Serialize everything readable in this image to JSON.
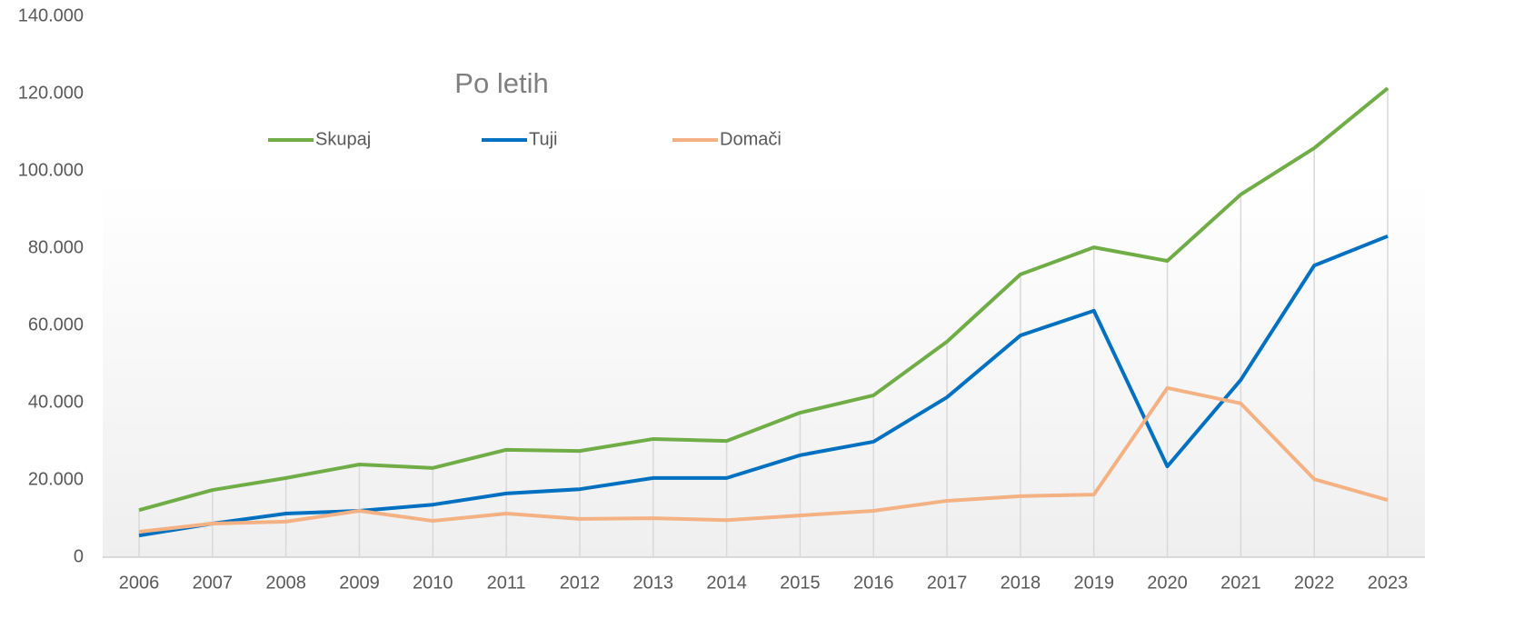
{
  "chart_data": {
    "type": "line",
    "title": "Po letih",
    "categories": [
      "2006",
      "2007",
      "2008",
      "2009",
      "2010",
      "2011",
      "2012",
      "2013",
      "2014",
      "2015",
      "2016",
      "2017",
      "2018",
      "2019",
      "2020",
      "2021",
      "2022",
      "2023"
    ],
    "series": [
      {
        "name": "Skupaj",
        "color": "#70ad47",
        "values": [
          12200,
          17400,
          20500,
          24000,
          23100,
          27800,
          27500,
          30600,
          30100,
          37400,
          41900,
          55800,
          73200,
          80200,
          76700,
          93900,
          105900,
          121400
        ]
      },
      {
        "name": "Tuji",
        "color": "#0070c0",
        "values": [
          5600,
          8700,
          11300,
          12000,
          13600,
          16500,
          17600,
          20500,
          20500,
          26400,
          29900,
          41400,
          57400,
          63800,
          23500,
          45900,
          75500,
          83100
        ]
      },
      {
        "name": "Domači",
        "color": "#f4b183",
        "values": [
          6600,
          8700,
          9200,
          12000,
          9400,
          11300,
          9900,
          10100,
          9600,
          10800,
          12000,
          14600,
          15800,
          16200,
          43800,
          39800,
          20200,
          14800
        ]
      }
    ],
    "ylim": [
      0,
      140000
    ],
    "yticks": [
      0,
      {
        "value": 20000,
        "label": "20.000"
      },
      {
        "value": 40000,
        "label": "40.000"
      },
      {
        "value": 60000,
        "label": "60.000"
      },
      {
        "value": 80000,
        "label": "80.000"
      },
      {
        "value": 100000,
        "label": "100.000"
      },
      {
        "value": 120000,
        "label": "120.000"
      },
      {
        "value": 140000,
        "label": "140.000"
      }
    ],
    "legend": "top"
  }
}
